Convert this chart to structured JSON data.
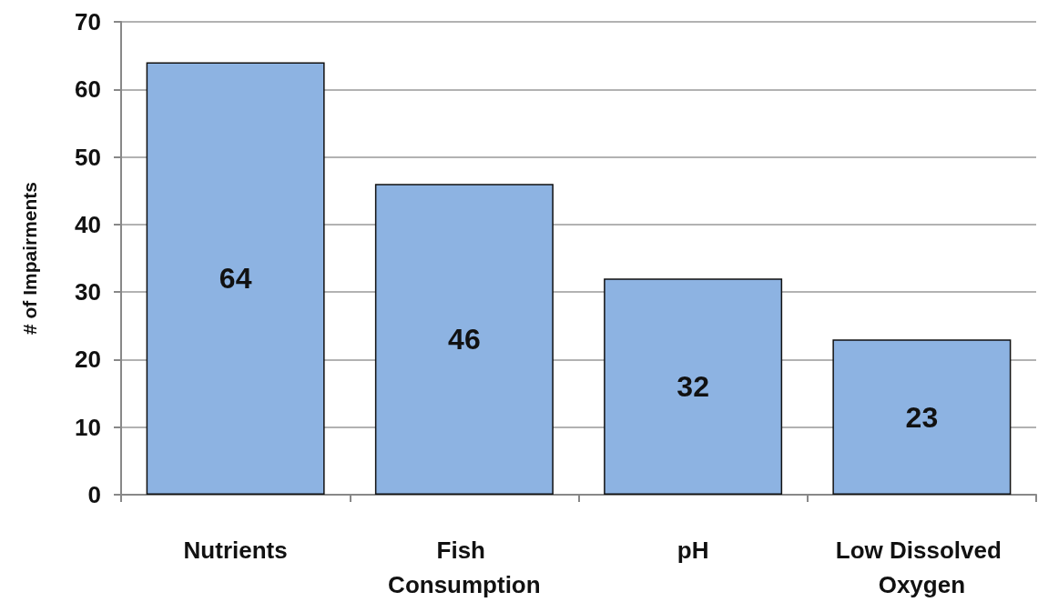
{
  "chart_data": {
    "type": "bar",
    "ylabel": "# of Impairments",
    "categories": [
      "Nutrients",
      "Fish Consumption",
      "pH",
      "Low Dissolved Oxygen"
    ],
    "values": [
      64,
      46,
      32,
      23
    ],
    "color": "#8db3e2",
    "ylim": [
      0,
      70
    ],
    "yticks": [
      0,
      10,
      20,
      30,
      40,
      50,
      60,
      70
    ],
    "grid": "y",
    "data_labels": true
  }
}
